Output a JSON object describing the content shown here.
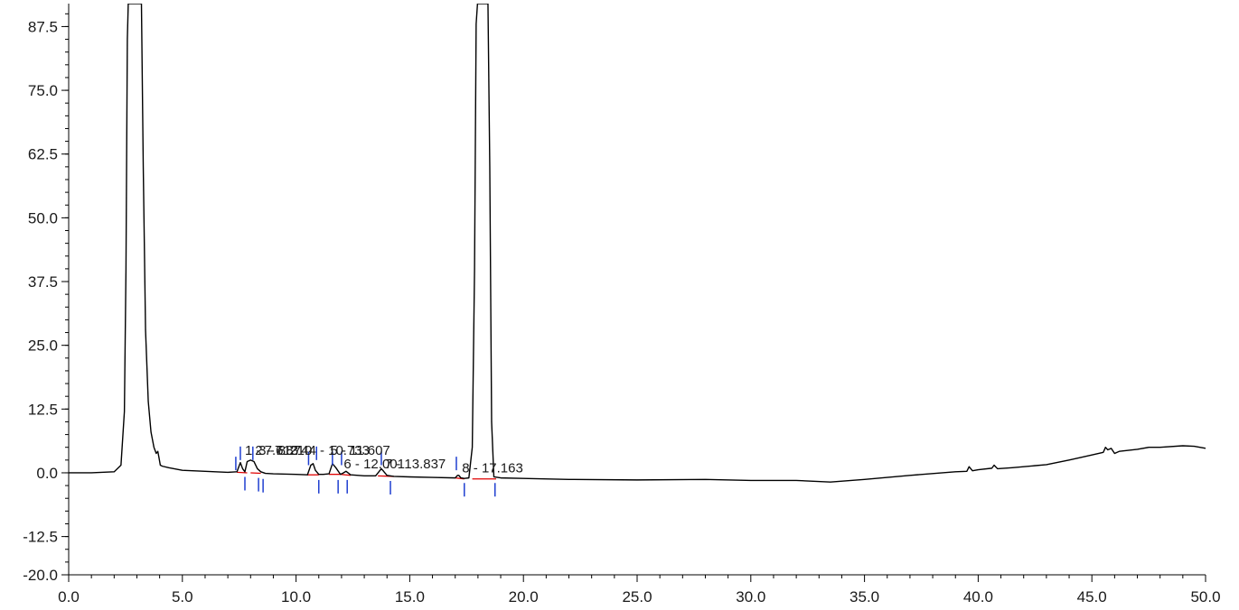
{
  "chart_data": {
    "type": "line",
    "title": "",
    "xlabel": "",
    "ylabel": "",
    "xlim": [
      0.0,
      50.0
    ],
    "ylim": [
      -20.0,
      92.0
    ],
    "x_ticks": [
      "0.0",
      "5.0",
      "10.0",
      "15.0",
      "20.0",
      "25.0",
      "30.0",
      "35.0",
      "40.0",
      "45.0",
      "50.0"
    ],
    "y_ticks": [
      "-20.0",
      "-12.5",
      "0.0",
      "12.5",
      "25.0",
      "37.5",
      "50.0",
      "62.5",
      "75.0",
      "87.5"
    ],
    "grid": false,
    "colors": {
      "trace": "#000000",
      "baseline": "#e00000",
      "marker": "#1f3fd0"
    },
    "series": [
      {
        "x": [
          0.0,
          1.0,
          2.0,
          2.3,
          2.45,
          2.52,
          2.58,
          2.62,
          2.66,
          2.7,
          2.72,
          2.78,
          2.84,
          2.88,
          2.92,
          2.97,
          3.02,
          3.08,
          3.14,
          3.2,
          3.28,
          3.38,
          3.5,
          3.62,
          3.75,
          3.85,
          3.92,
          3.97,
          4.03,
          4.12,
          4.4,
          5.0,
          6.0,
          7.0,
          7.4,
          7.55,
          7.65,
          7.75,
          7.85,
          8.0,
          8.15,
          8.3,
          8.45,
          8.65,
          9.0,
          10.0,
          10.5,
          10.65,
          10.75,
          10.85,
          11.0,
          11.2,
          11.45,
          11.6,
          11.75,
          11.95,
          12.05,
          12.2,
          12.4,
          13.0,
          13.5,
          13.75,
          13.85,
          14.0,
          14.3,
          15.0,
          16.0,
          17.0,
          17.1,
          17.16,
          17.25,
          17.4,
          17.6,
          17.75,
          17.85,
          17.92,
          17.98,
          18.05,
          18.12,
          18.2,
          18.28,
          18.36,
          18.44,
          18.52,
          18.6,
          18.7,
          19.0,
          20.0,
          22.0,
          25.0,
          28.0,
          30.0,
          32.0,
          33.5,
          35.0,
          37.0,
          39.0,
          39.5,
          39.6,
          39.75,
          40.0,
          40.6,
          40.7,
          40.85,
          41.5,
          42.0,
          43.0,
          44.0,
          45.0,
          45.5,
          45.6,
          45.7,
          45.85,
          46.0,
          46.2,
          47.0,
          47.5,
          48.0,
          49.0,
          49.5,
          50.0
        ],
        "y": [
          0.0,
          0.0,
          0.2,
          1.5,
          12.0,
          40.0,
          85.0,
          92.0,
          92.0,
          92.0,
          92.0,
          92.0,
          92.0,
          92.0,
          92.0,
          92.0,
          92.0,
          92.0,
          92.0,
          92.0,
          60.0,
          28.0,
          14.0,
          8.0,
          5.0,
          3.8,
          4.2,
          3.0,
          1.5,
          1.3,
          1.0,
          0.5,
          0.3,
          0.1,
          0.2,
          2.0,
          0.8,
          0.2,
          2.2,
          2.5,
          2.2,
          0.8,
          0.2,
          -0.1,
          -0.2,
          -0.3,
          -0.4,
          1.5,
          1.8,
          0.5,
          -0.3,
          -0.3,
          -0.2,
          1.8,
          1.0,
          -0.3,
          -0.1,
          0.3,
          -0.4,
          -0.6,
          -0.6,
          0.8,
          0.3,
          -0.5,
          -0.7,
          -0.8,
          -0.9,
          -1.0,
          -0.5,
          -0.5,
          -1.0,
          -1.1,
          -1.0,
          5.0,
          40.0,
          88.0,
          92.0,
          92.0,
          92.0,
          92.0,
          92.0,
          92.0,
          92.0,
          60.0,
          10.0,
          -0.8,
          -1.0,
          -1.1,
          -1.3,
          -1.4,
          -1.3,
          -1.5,
          -1.5,
          -1.8,
          -1.3,
          -0.5,
          0.2,
          0.3,
          1.2,
          0.4,
          0.6,
          0.9,
          1.5,
          0.8,
          1.0,
          1.2,
          1.6,
          2.5,
          3.5,
          4.0,
          5.0,
          4.5,
          4.8,
          3.8,
          4.2,
          4.6,
          5.0,
          5.0,
          5.3,
          5.2,
          4.8
        ]
      }
    ],
    "baseline_segments": [
      {
        "x": [
          7.4,
          7.85
        ],
        "y": [
          0.1,
          0.0
        ]
      },
      {
        "x": [
          8.0,
          8.45
        ],
        "y": [
          0.0,
          -0.1
        ]
      },
      {
        "x": [
          10.5,
          11.0
        ],
        "y": [
          -0.4,
          -0.4
        ]
      },
      {
        "x": [
          11.45,
          11.95
        ],
        "y": [
          -0.3,
          -0.3
        ]
      },
      {
        "x": [
          11.95,
          12.4
        ],
        "y": [
          -0.3,
          -0.5
        ]
      },
      {
        "x": [
          13.6,
          14.3
        ],
        "y": [
          -0.6,
          -0.7
        ]
      },
      {
        "x": [
          17.0,
          17.4
        ],
        "y": [
          -1.0,
          -1.2
        ]
      },
      {
        "x": [
          17.75,
          18.8
        ],
        "y": [
          -1.2,
          -1.2
        ]
      }
    ],
    "integration_markers": [
      {
        "x": 7.35,
        "y": 0.5,
        "dir": "up"
      },
      {
        "x": 7.75,
        "y": -0.8,
        "dir": "down"
      },
      {
        "x": 7.55,
        "y": 2.5,
        "dir": "up"
      },
      {
        "x": 8.1,
        "y": 2.5,
        "dir": "up"
      },
      {
        "x": 8.35,
        "y": -1.0,
        "dir": "down"
      },
      {
        "x": 8.55,
        "y": -1.2,
        "dir": "down"
      },
      {
        "x": 10.55,
        "y": 1.5,
        "dir": "up"
      },
      {
        "x": 11.0,
        "y": -1.4,
        "dir": "down"
      },
      {
        "x": 10.9,
        "y": 2.5,
        "dir": "up"
      },
      {
        "x": 11.6,
        "y": 1.5,
        "dir": "up"
      },
      {
        "x": 11.85,
        "y": -1.4,
        "dir": "down"
      },
      {
        "x": 12.0,
        "y": 1.5,
        "dir": "up"
      },
      {
        "x": 12.25,
        "y": -1.4,
        "dir": "down"
      },
      {
        "x": 13.75,
        "y": 1.5,
        "dir": "up"
      },
      {
        "x": 14.15,
        "y": -1.6,
        "dir": "down"
      },
      {
        "x": 17.05,
        "y": 0.5,
        "dir": "up"
      },
      {
        "x": 17.4,
        "y": -2.0,
        "dir": "down"
      },
      {
        "x": 18.75,
        "y": -2.0,
        "dir": "down"
      }
    ],
    "peak_labels": [
      {
        "x": 7.75,
        "y": 3.5,
        "text": "1 - 7.613"
      },
      {
        "x": 8.2,
        "y": 3.5,
        "text": "2 - 7.874"
      },
      {
        "x": 8.35,
        "y": 3.5,
        "text": "3 - 8.210"
      },
      {
        "x": 10.55,
        "y": 3.5,
        "text": "4 - 10.733"
      },
      {
        "x": 11.5,
        "y": 3.5,
        "text": "5 - 11.607"
      },
      {
        "x": 12.1,
        "y": 0.9,
        "text": "6 - 12.001"
      },
      {
        "x": 13.9,
        "y": 0.9,
        "text": "7 - 13.837"
      },
      {
        "x": 17.3,
        "y": 0.1,
        "text": "8 - 17.163"
      }
    ]
  }
}
